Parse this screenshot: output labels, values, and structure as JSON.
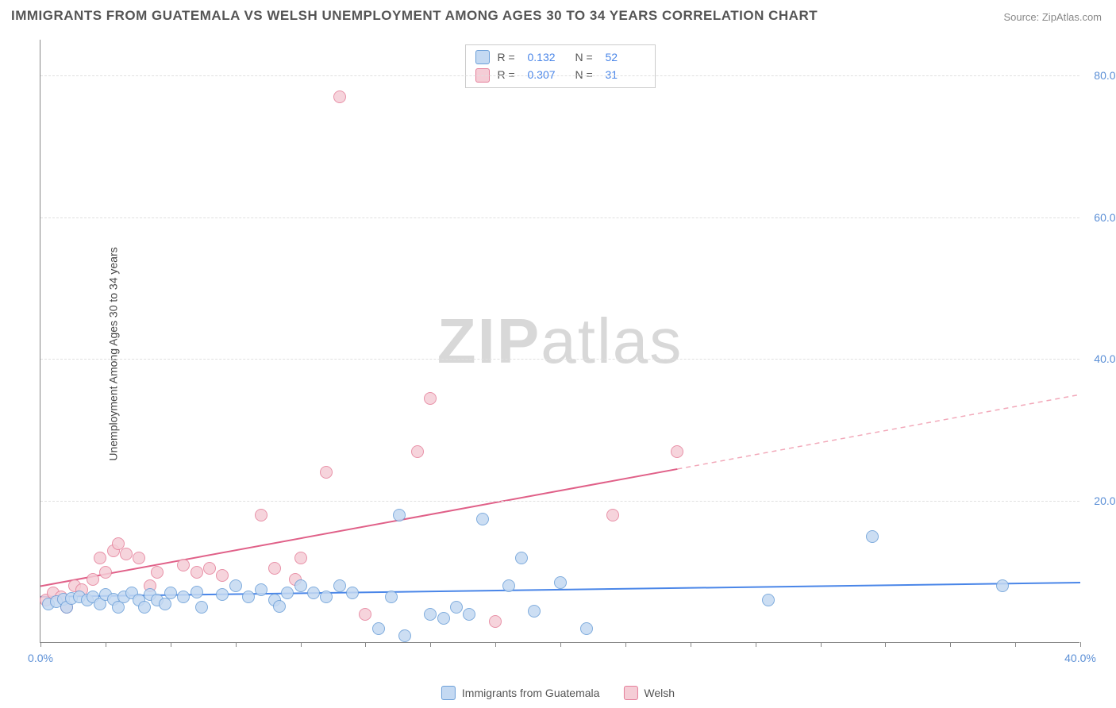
{
  "title": "IMMIGRANTS FROM GUATEMALA VS WELSH UNEMPLOYMENT AMONG AGES 30 TO 34 YEARS CORRELATION CHART",
  "source": "Source: ZipAtlas.com",
  "y_axis_label": "Unemployment Among Ages 30 to 34 years",
  "watermark_a": "ZIP",
  "watermark_b": "atlas",
  "chart": {
    "type": "scatter",
    "xlim": [
      0,
      40
    ],
    "ylim": [
      0,
      85
    ],
    "x_tick_step": 2.5,
    "x_tick_labels": [
      "0.0%",
      "40.0%"
    ],
    "y_ticks": [
      20,
      40,
      60,
      80
    ],
    "y_tick_labels": [
      "20.0%",
      "40.0%",
      "60.0%",
      "80.0%"
    ],
    "background_color": "#ffffff",
    "grid_color": "#e0e0e0",
    "axis_color": "#888888",
    "tick_label_color": "#5b8fd6",
    "marker_radius": 8,
    "series": {
      "guatemala": {
        "label": "Immigrants from Guatemala",
        "fill": "#c4d9f2",
        "stroke": "#6b9fd8",
        "points": [
          [
            0.3,
            5.5
          ],
          [
            0.6,
            5.8
          ],
          [
            0.9,
            6.1
          ],
          [
            1.0,
            5.0
          ],
          [
            1.2,
            6.3
          ],
          [
            1.5,
            6.5
          ],
          [
            1.8,
            6.0
          ],
          [
            2.0,
            6.5
          ],
          [
            2.3,
            5.5
          ],
          [
            2.5,
            6.8
          ],
          [
            2.8,
            6.2
          ],
          [
            3.0,
            5.0
          ],
          [
            3.2,
            6.5
          ],
          [
            3.5,
            7.0
          ],
          [
            3.8,
            6.0
          ],
          [
            4.0,
            5.0
          ],
          [
            4.2,
            6.8
          ],
          [
            4.5,
            6.0
          ],
          [
            4.8,
            5.5
          ],
          [
            5.0,
            7.0
          ],
          [
            5.5,
            6.5
          ],
          [
            6.0,
            7.2
          ],
          [
            6.2,
            5.0
          ],
          [
            7.0,
            6.8
          ],
          [
            7.5,
            8.0
          ],
          [
            8.0,
            6.5
          ],
          [
            8.5,
            7.5
          ],
          [
            9.0,
            6.0
          ],
          [
            9.2,
            5.2
          ],
          [
            9.5,
            7.0
          ],
          [
            10.0,
            8.0
          ],
          [
            10.5,
            7.0
          ],
          [
            11.0,
            6.5
          ],
          [
            11.5,
            8.0
          ],
          [
            12.0,
            7.0
          ],
          [
            13.0,
            2.0
          ],
          [
            13.5,
            6.5
          ],
          [
            13.8,
            18.0
          ],
          [
            14.0,
            1.0
          ],
          [
            15.0,
            4.0
          ],
          [
            15.5,
            3.5
          ],
          [
            16.0,
            5.0
          ],
          [
            16.5,
            4.0
          ],
          [
            17.0,
            17.5
          ],
          [
            18.0,
            8.0
          ],
          [
            18.5,
            12.0
          ],
          [
            19.0,
            4.5
          ],
          [
            20.0,
            8.5
          ],
          [
            21.0,
            2.0
          ],
          [
            28.0,
            6.0
          ],
          [
            32.0,
            15.0
          ],
          [
            37.0,
            8.0
          ]
        ],
        "trend": {
          "x1": 0,
          "y1": 6.5,
          "x2": 40,
          "y2": 8.5,
          "color": "#4a86e8",
          "width": 2
        }
      },
      "welsh": {
        "label": "Welsh",
        "fill": "#f5cdd6",
        "stroke": "#e57f9a",
        "points": [
          [
            0.2,
            6.0
          ],
          [
            0.5,
            7.0
          ],
          [
            0.8,
            6.5
          ],
          [
            1.0,
            5.0
          ],
          [
            1.3,
            8.0
          ],
          [
            1.6,
            7.5
          ],
          [
            2.0,
            9.0
          ],
          [
            2.3,
            12.0
          ],
          [
            2.5,
            10.0
          ],
          [
            2.8,
            13.0
          ],
          [
            3.0,
            14.0
          ],
          [
            3.3,
            12.5
          ],
          [
            3.8,
            12.0
          ],
          [
            4.2,
            8.0
          ],
          [
            4.5,
            10.0
          ],
          [
            5.5,
            11.0
          ],
          [
            6.0,
            10.0
          ],
          [
            6.5,
            10.5
          ],
          [
            7.0,
            9.5
          ],
          [
            8.5,
            18.0
          ],
          [
            9.0,
            10.5
          ],
          [
            9.8,
            9.0
          ],
          [
            10.0,
            12.0
          ],
          [
            11.0,
            24.0
          ],
          [
            11.5,
            77.0
          ],
          [
            12.5,
            4.0
          ],
          [
            14.5,
            27.0
          ],
          [
            15.0,
            34.5
          ],
          [
            17.5,
            3.0
          ],
          [
            22.0,
            18.0
          ],
          [
            24.5,
            27.0
          ]
        ],
        "trend": {
          "x1": 0,
          "y1": 8.0,
          "x2": 24.5,
          "y2": 24.5,
          "color": "#e06088",
          "width": 2
        },
        "trend_ext": {
          "x1": 24.5,
          "y1": 24.5,
          "x2": 40,
          "y2": 35.0,
          "color": "#f2a8b9",
          "dash": "6,5",
          "width": 1.5
        }
      }
    }
  },
  "legend_top": {
    "rows": [
      {
        "fill": "#c4d9f2",
        "stroke": "#6b9fd8",
        "r_label": "R =",
        "r_value": "0.132",
        "n_label": "N =",
        "n_value": "52"
      },
      {
        "fill": "#f5cdd6",
        "stroke": "#e57f9a",
        "r_label": "R =",
        "r_value": "0.307",
        "n_label": "N =",
        "n_value": "31"
      }
    ]
  },
  "legend_bottom": {
    "items": [
      {
        "fill": "#c4d9f2",
        "stroke": "#6b9fd8",
        "label": "Immigrants from Guatemala"
      },
      {
        "fill": "#f5cdd6",
        "stroke": "#e57f9a",
        "label": "Welsh"
      }
    ]
  }
}
